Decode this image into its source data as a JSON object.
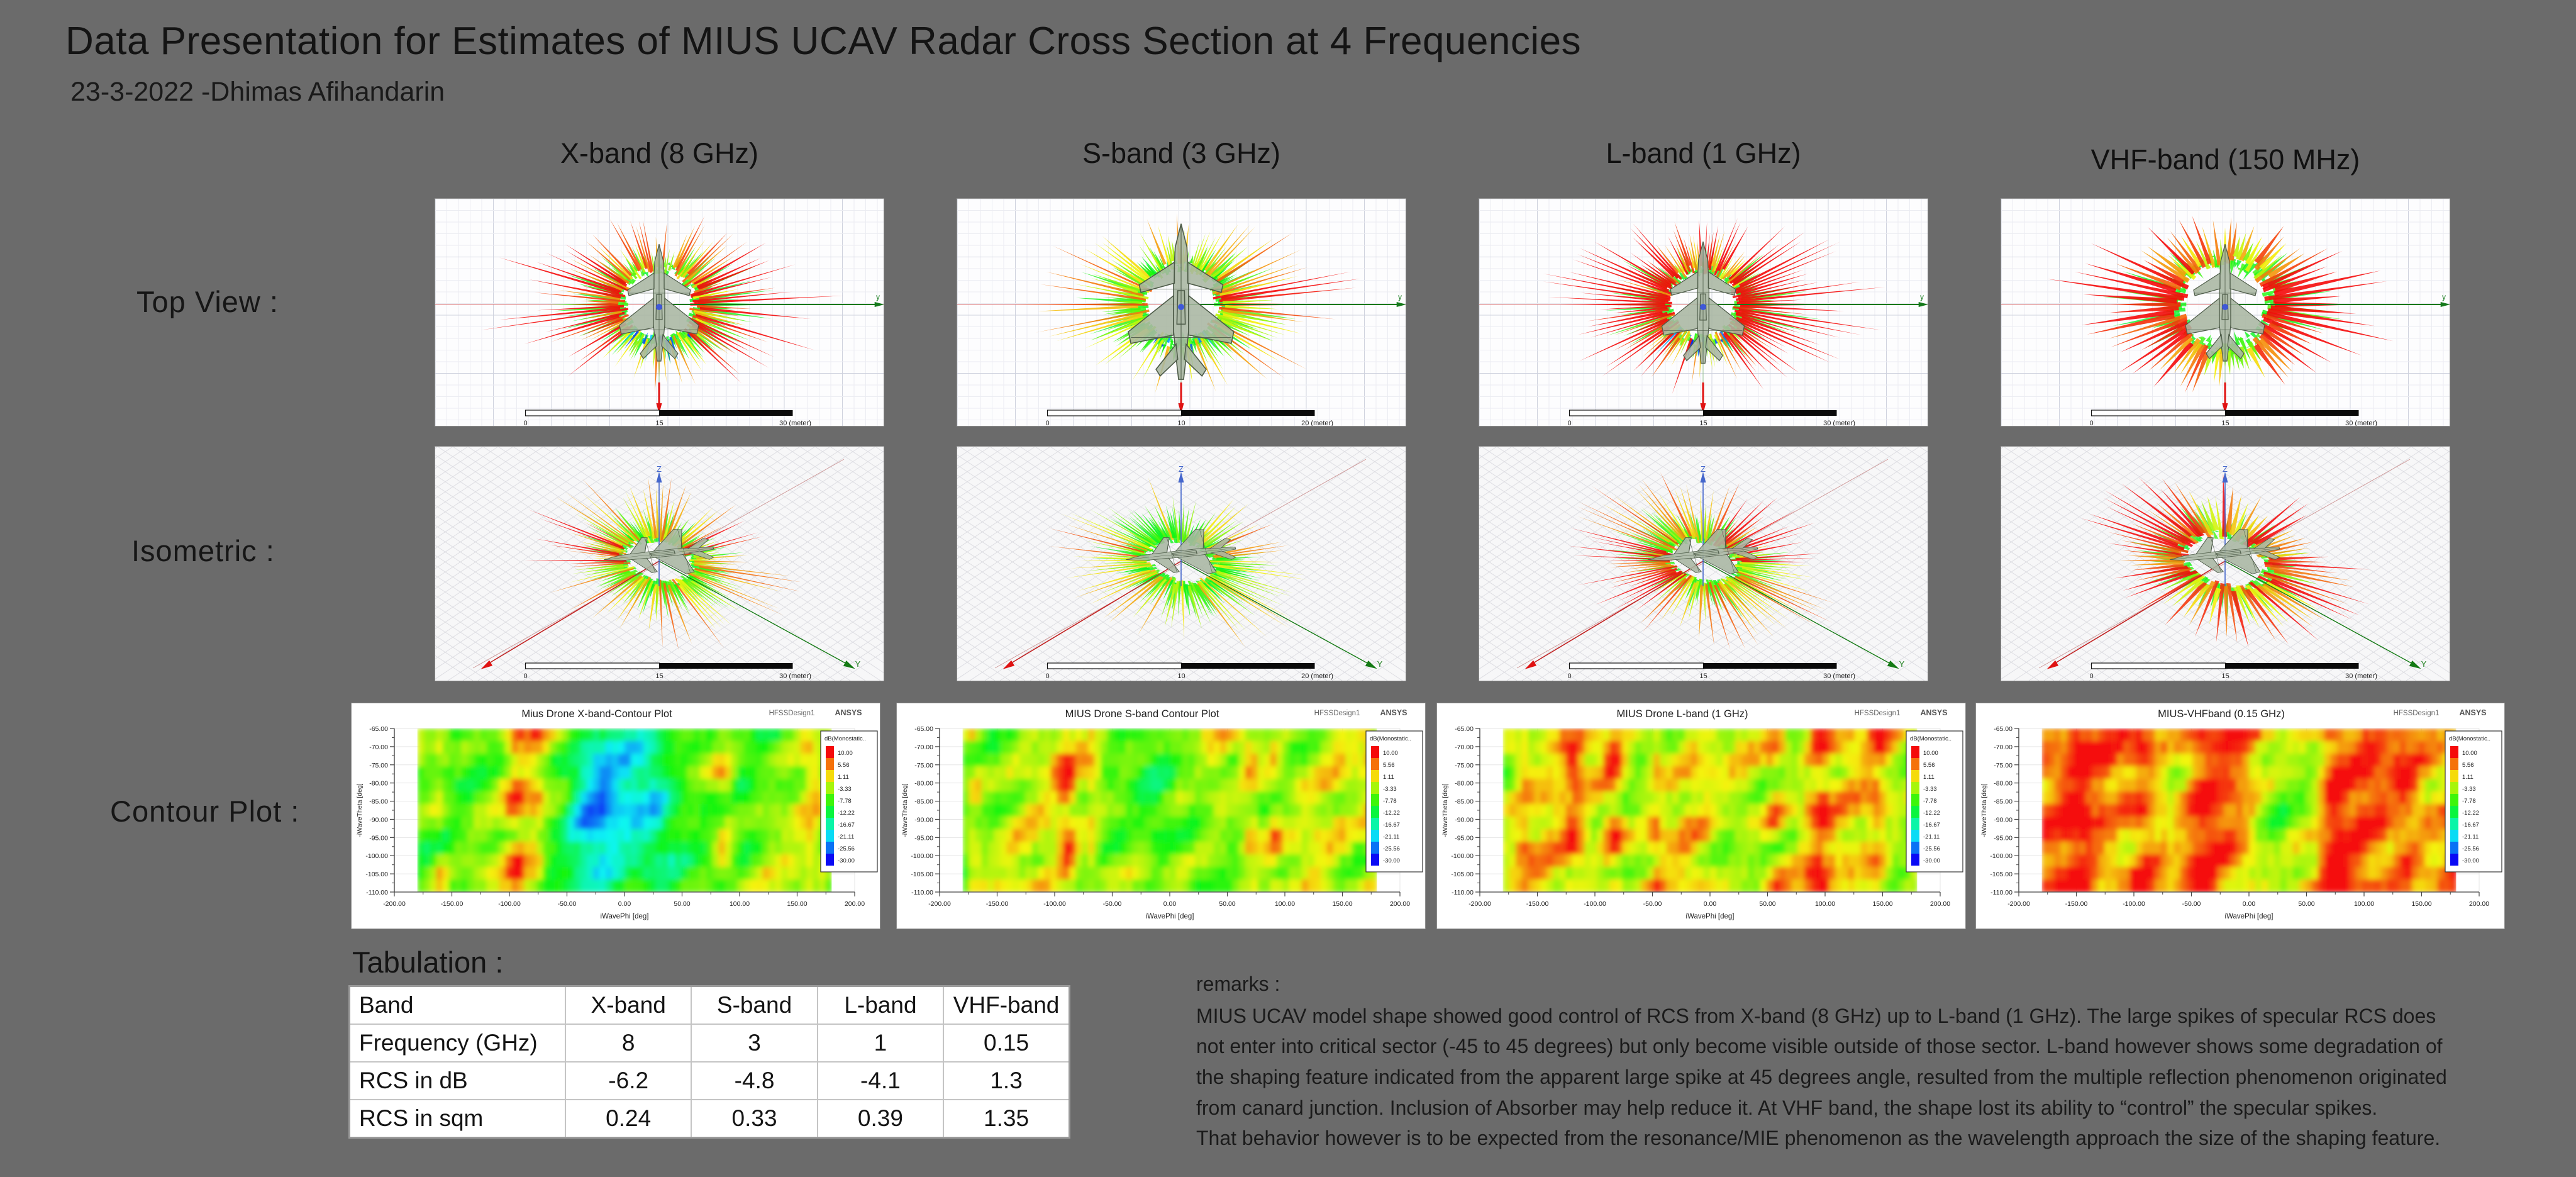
{
  "slide": {
    "title": "Data Presentation for Estimates of MIUS UCAV Radar Cross Section at 4 Frequencies",
    "subtitle": "23-3-2022 -Dhimas Afihandarin",
    "background_color": "#6b6b6b"
  },
  "columns": [
    {
      "label": "X-band (8 GHz)"
    },
    {
      "label": "S-band (3 GHz)"
    },
    {
      "label": "L-band (1 GHz)"
    },
    {
      "label": "VHF-band (150 MHz)"
    }
  ],
  "rows": [
    {
      "label": "Top View :"
    },
    {
      "label": "Isometric :"
    },
    {
      "label": "Contour Plot :"
    }
  ],
  "figures": {
    "contour_titles": [
      "Mius Drone X-band-Contour Plot",
      "MIUS Drone S-band Contour Plot",
      "MIUS Drone L-band (1 GHz)",
      "MIUS-VHFband (0.15 GHz)"
    ],
    "contour_common": {
      "design_label": "HFSSDesign1",
      "brand": "ANSYS",
      "legend_title": "dB(Monostatic..",
      "legend_values": [
        "10.00",
        "5.56",
        "1.11",
        "-3.33",
        "-7.78",
        "-12.22",
        "-16.67",
        "-21.11",
        "-25.56",
        "-30.00"
      ],
      "x_label": "iWavePhi [deg]",
      "y_label": "-iWaveTheta [deg]",
      "x_ticks": [
        "-200.00",
        "-150.00",
        "-100.00",
        "-50.00",
        "0.00",
        "50.00",
        "100.00",
        "150.00",
        "200.00"
      ],
      "y_ticks": [
        "-65.00",
        "-70.00",
        "-75.00",
        "-80.00",
        "-85.00",
        "-90.00",
        "-95.00",
        "-100.00",
        "-105.00",
        "-110.00"
      ]
    },
    "scale_bars": [
      [
        "0",
        "15",
        "30 (meter)"
      ],
      [
        "0",
        "10",
        "20 (meter)"
      ],
      [
        "0",
        "15",
        "30 (meter)"
      ],
      [
        "0",
        "15",
        "30 (meter)"
      ]
    ],
    "axis_letters": {
      "top_y": "y",
      "iso_z": "Z",
      "iso_y": "Y"
    }
  },
  "tabulation": {
    "label": "Tabulation :",
    "table": {
      "header": [
        "Band",
        "X-band",
        "S-band",
        "L-band",
        "VHF-band"
      ],
      "rows": [
        [
          "Frequency (GHz)",
          "8",
          "3",
          "1",
          "0.15"
        ],
        [
          "RCS in dB",
          "-6.2",
          "-4.8",
          "-4.1",
          "1.3"
        ],
        [
          "RCS in sqm",
          "0.24",
          "0.33",
          "0.39",
          "1.35"
        ]
      ]
    }
  },
  "remarks": {
    "label": "remarks :",
    "body": "MIUS UCAV model shape showed  good control of RCS from X-band (8 GHz) up to L-band (1 GHz). The large spikes of specular RCS does not enter into critical sector (-45 to 45 degrees) but only become visible outside of those sector.  L-band however shows some degradation of the shaping feature indicated from the apparent large spike at 45 degrees angle, resulted from the multiple reflection phenomenon originated from canard junction. Inclusion of Absorber may help reduce it.  At VHF band, the shape lost its ability to “control” the specular spikes.",
    "footer": "That behavior however is to be expected from the resonance/MIE phenomenon as the wavelength approach the size of the shaping feature."
  }
}
